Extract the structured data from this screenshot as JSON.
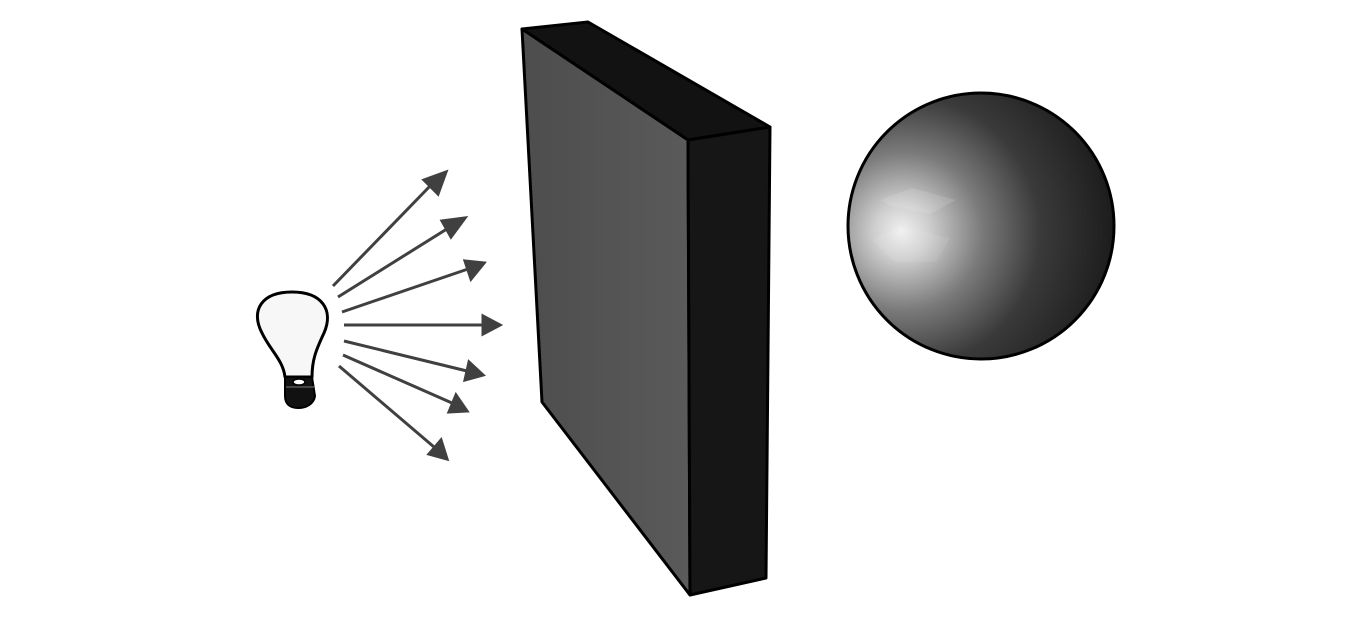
{
  "diagram": {
    "elements": [
      {
        "id": "light-bulb",
        "kind": "light source"
      },
      {
        "id": "light-rays",
        "kind": "arrows",
        "count": 7
      },
      {
        "id": "wall-block",
        "kind": "opaque slab"
      },
      {
        "id": "sphere",
        "kind": "shaded sphere"
      }
    ],
    "colors": {
      "background": "#ffffff",
      "outline": "#000000",
      "bulb_glass": "#f7f7f7",
      "bulb_base": "#111111",
      "ray": "#404040",
      "slab_front": "#555555",
      "slab_side": "#151515",
      "slab_top": "#121212",
      "sphere_highlight": "#e8e8e8",
      "sphere_mid": "#6a6a6a",
      "sphere_shadow": "#1a1a1a"
    }
  }
}
